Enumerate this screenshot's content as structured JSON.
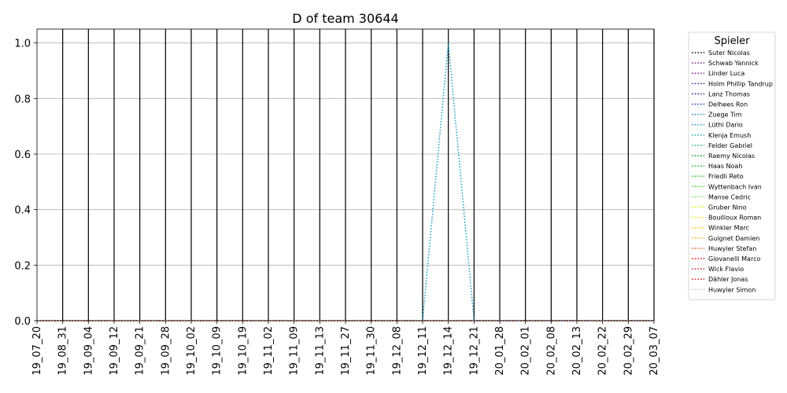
{
  "chart_data": {
    "type": "line",
    "title": "D of team 30644",
    "xlabel": "",
    "ylabel": "",
    "ylim": [
      0,
      1.05
    ],
    "yticks": [
      "0.0",
      "0.2",
      "0.4",
      "0.6",
      "0.8",
      "1.0"
    ],
    "ytick_values": [
      0,
      0.2,
      0.4,
      0.6,
      0.8,
      1.0
    ],
    "grid": "y",
    "categories": [
      "19_07_20",
      "19_08_31",
      "19_09_04",
      "19_09_12",
      "19_09_21",
      "19_09_28",
      "19_10_02",
      "19_10_09",
      "19_10_19",
      "19_11_02",
      "19_11_09",
      "19_11_13",
      "19_11_27",
      "19_11_30",
      "19_12_08",
      "19_12_11",
      "19_12_14",
      "19_12_21",
      "20_01_28",
      "20_02_01",
      "20_02_08",
      "20_02_13",
      "20_02_22",
      "20_02_29",
      "20_03_07"
    ],
    "vlines_at": [
      "19_08_31",
      "19_09_04",
      "19_09_12",
      "19_09_21",
      "19_09_28",
      "19_10_02",
      "19_10_09",
      "19_10_19",
      "19_11_02",
      "19_11_09",
      "19_11_13",
      "19_11_27",
      "19_11_30",
      "19_12_08",
      "19_12_11",
      "19_12_14",
      "19_12_21",
      "20_01_28",
      "20_02_01",
      "20_02_08",
      "20_02_13",
      "20_02_22",
      "20_02_29",
      "20_03_07"
    ],
    "legend": {
      "title": "Spieler",
      "placement": "outside-right"
    },
    "series": [
      {
        "name": "Suter Nicolas",
        "color": "#000000",
        "values": [
          0,
          0,
          0,
          0,
          0,
          0,
          0,
          0,
          0,
          0,
          0,
          0,
          0,
          0,
          0,
          0,
          0,
          0,
          0,
          0,
          0,
          0,
          0,
          0,
          0
        ]
      },
      {
        "name": "Schwab Yannick",
        "color": "#6a0080",
        "values": [
          0,
          0,
          0,
          0,
          0,
          0,
          0,
          0,
          0,
          0,
          0,
          0,
          0,
          0,
          0,
          0,
          0,
          0,
          0,
          0,
          0,
          0,
          0,
          0,
          0
        ]
      },
      {
        "name": "Linder Luca",
        "color": "#7a0090",
        "values": [
          0,
          0,
          0,
          0,
          0,
          0,
          0,
          0,
          0,
          0,
          0,
          0,
          0,
          0,
          0,
          0,
          0,
          0,
          0,
          0,
          0,
          0,
          0,
          0,
          0
        ]
      },
      {
        "name": "Holm Phillip Tandrup",
        "color": "#2a0090",
        "values": [
          0,
          0,
          0,
          0,
          0,
          0,
          0,
          0,
          0,
          0,
          0,
          0,
          0,
          0,
          0,
          0,
          0,
          0,
          0,
          0,
          0,
          0,
          0,
          0,
          0
        ]
      },
      {
        "name": "Lanz Thomas",
        "color": "#000090",
        "values": [
          0,
          0,
          0,
          0,
          0,
          0,
          0,
          0,
          0,
          0,
          0,
          0,
          0,
          0,
          0,
          0,
          0,
          0,
          0,
          0,
          0,
          0,
          0,
          0,
          0
        ]
      },
      {
        "name": "Delhees Ron",
        "color": "#0030c0",
        "values": [
          0,
          0,
          0,
          0,
          0,
          0,
          0,
          0,
          0,
          0,
          0,
          0,
          0,
          0,
          0,
          0,
          0,
          0,
          0,
          0,
          0,
          0,
          0,
          0,
          0
        ]
      },
      {
        "name": "Zuege Tim",
        "color": "#0080d0",
        "values": [
          0,
          0,
          0,
          0,
          0,
          0,
          0,
          0,
          0,
          0,
          0,
          0,
          0,
          0,
          0,
          0,
          0,
          0,
          0,
          0,
          0,
          0,
          0,
          0,
          0
        ]
      },
      {
        "name": "Lüthi Dario",
        "color": "#0098c8",
        "values": [
          0,
          0,
          0,
          0,
          0,
          0,
          0,
          0,
          0,
          0,
          0,
          0,
          0,
          0,
          0,
          0,
          1.0,
          0,
          0,
          0,
          0,
          0,
          0,
          0,
          0
        ]
      },
      {
        "name": "Klenja Emush",
        "color": "#00a8a8",
        "values": [
          0,
          0,
          0,
          0,
          0,
          0,
          0,
          0,
          0,
          0,
          0,
          0,
          0,
          0,
          0,
          0,
          0,
          0,
          0,
          0,
          0,
          0,
          0,
          0,
          0
        ]
      },
      {
        "name": "Felder Gabriel",
        "color": "#00a880",
        "values": [
          0,
          0,
          0,
          0,
          0,
          0,
          0,
          0,
          0,
          0,
          0,
          0,
          0,
          0,
          0,
          0,
          0,
          0,
          0,
          0,
          0,
          0,
          0,
          0,
          0
        ]
      },
      {
        "name": "Raemy Nicolas",
        "color": "#009a20",
        "values": [
          0,
          0,
          0,
          0,
          0,
          0,
          0,
          0,
          0,
          0,
          0,
          0,
          0,
          0,
          0,
          0,
          0,
          0,
          0,
          0,
          0,
          0,
          0,
          0,
          0
        ]
      },
      {
        "name": "Haas Noah",
        "color": "#00b000",
        "values": [
          0,
          0,
          0,
          0,
          0,
          0,
          0,
          0,
          0,
          0,
          0,
          0,
          0,
          0,
          0,
          0,
          0,
          0,
          0,
          0,
          0,
          0,
          0,
          0,
          0
        ]
      },
      {
        "name": "Friedli Reto",
        "color": "#00cc00",
        "values": [
          0,
          0,
          0,
          0,
          0,
          0,
          0,
          0,
          0,
          0,
          0,
          0,
          0,
          0,
          0,
          0,
          0,
          0,
          0,
          0,
          0,
          0,
          0,
          0,
          0
        ]
      },
      {
        "name": "Wyttenbach Ivan",
        "color": "#30dd00",
        "values": [
          0,
          0,
          0,
          0,
          0,
          0,
          0,
          0,
          0,
          0,
          0,
          0,
          0,
          0,
          0,
          0,
          0,
          0,
          0,
          0,
          0,
          0,
          0,
          0,
          0
        ]
      },
      {
        "name": "Manse Cedric",
        "color": "#60ee40",
        "values": [
          0,
          0,
          0,
          0,
          0,
          0,
          0,
          0,
          0,
          0,
          0,
          0,
          0,
          0,
          0,
          0,
          0,
          0,
          0,
          0,
          0,
          0,
          0,
          0,
          0
        ]
      },
      {
        "name": "Gruber Nino",
        "color": "#d8f000",
        "values": [
          0,
          0,
          0,
          0,
          0,
          0,
          0,
          0,
          0,
          0,
          0,
          0,
          0,
          0,
          0,
          0,
          0,
          0,
          0,
          0,
          0,
          0,
          0,
          0,
          0
        ]
      },
      {
        "name": "Bouilloux Roman",
        "color": "#f0e000",
        "values": [
          0,
          0,
          0,
          0,
          0,
          0,
          0,
          0,
          0,
          0,
          0,
          0,
          0,
          0,
          0,
          0,
          0,
          0,
          0,
          0,
          0,
          0,
          0,
          0,
          0
        ]
      },
      {
        "name": "Winkler Marc",
        "color": "#f8c800",
        "values": [
          0,
          0,
          0,
          0,
          0,
          0,
          0,
          0,
          0,
          0,
          0,
          0,
          0,
          0,
          0,
          0,
          0,
          0,
          0,
          0,
          0,
          0,
          0,
          0,
          0
        ]
      },
      {
        "name": "Guignet Damien",
        "color": "#ffa000",
        "values": [
          0,
          0,
          0,
          0,
          0,
          0,
          0,
          0,
          0,
          0,
          0,
          0,
          0,
          0,
          0,
          0,
          0,
          0,
          0,
          0,
          0,
          0,
          0,
          0,
          0
        ]
      },
      {
        "name": "Huwyler Stefan",
        "color": "#ff4000",
        "values": [
          0,
          0,
          0,
          0,
          0,
          0,
          0,
          0,
          0,
          0,
          0,
          0,
          0,
          0,
          0,
          0,
          0,
          0,
          0,
          0,
          0,
          0,
          0,
          0,
          0
        ]
      },
      {
        "name": "Giovanelli Marco",
        "color": "#e00000",
        "values": [
          0,
          0,
          0,
          0,
          0,
          0,
          0,
          0,
          0,
          0,
          0,
          0,
          0,
          0,
          0,
          0,
          0,
          0,
          0,
          0,
          0,
          0,
          0,
          0,
          0
        ]
      },
      {
        "name": "Wick Flavio",
        "color": "#cc0000",
        "values": [
          0,
          0,
          0,
          0,
          0,
          0,
          0,
          0,
          0,
          0,
          0,
          0,
          0,
          0,
          0,
          0,
          0,
          0,
          0,
          0,
          0,
          0,
          0,
          0,
          0
        ]
      },
      {
        "name": "Dähler Jonas",
        "color": "#d80000",
        "values": [
          0,
          0,
          0,
          0,
          0,
          0,
          0,
          0,
          0,
          0,
          0,
          0,
          0,
          0,
          0,
          0,
          0,
          0,
          0,
          0,
          0,
          0,
          0,
          0,
          0
        ]
      },
      {
        "name": "Huwyler Simon",
        "color": "#c8c8c8",
        "values": [
          0,
          0,
          0,
          0,
          0,
          0,
          0,
          0,
          0,
          0,
          0,
          0,
          0,
          0,
          0,
          0,
          0,
          0,
          0,
          0,
          0,
          0,
          0,
          0,
          0
        ]
      }
    ]
  }
}
